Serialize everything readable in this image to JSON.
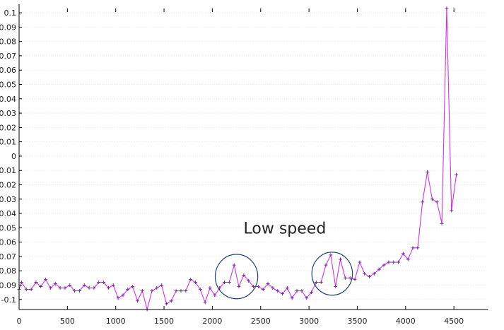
{
  "colors": {
    "series_line": "#cc33ee",
    "marker": "#7a2aa8",
    "ellipse": "#1f3f7a",
    "grid": "#dddddd",
    "axis": "#000000",
    "background": "#ffffff"
  },
  "chart_data": {
    "type": "line",
    "title": "",
    "xlabel": "",
    "ylabel": "",
    "xlim": [
      0,
      4850
    ],
    "ylim": [
      -0.107,
      0.103
    ],
    "grid": "horizontal-dotted",
    "x_ticks": [
      0,
      500,
      1000,
      1500,
      2000,
      2500,
      3000,
      3500,
      4000,
      4500
    ],
    "y_ticks": [
      0.1,
      0.09,
      0.08,
      0.07,
      0.06,
      0.05,
      0.04,
      0.03,
      0.02,
      0.01,
      0,
      -0.01,
      -0.02,
      -0.03,
      -0.04,
      -0.05,
      -0.06,
      -0.07,
      -0.08,
      -0.09,
      -0.1
    ],
    "x_tick_labels": [
      "0",
      "500",
      "1000",
      "1500",
      "2000",
      "2500",
      "3000",
      "3500",
      "4000",
      "4500"
    ],
    "y_tick_labels": [
      "0.1",
      "0.09",
      "0.08",
      "0.07",
      "0.06",
      "0.05",
      "0.04",
      "0.03",
      "0.02",
      "0.01",
      "0",
      "-0.01",
      "-0.02",
      "-0.03",
      "-0.04",
      "-0.05",
      "-0.06",
      "-0.07",
      "-0.08",
      "-0.09",
      "-0.1"
    ],
    "series": [
      {
        "marker": "+",
        "points": [
          [
            0,
            -0.093
          ],
          [
            25,
            -0.088
          ],
          [
            75,
            -0.093
          ],
          [
            125,
            -0.093
          ],
          [
            175,
            -0.088
          ],
          [
            225,
            -0.091
          ],
          [
            275,
            -0.086
          ],
          [
            325,
            -0.092
          ],
          [
            375,
            -0.089
          ],
          [
            425,
            -0.092
          ],
          [
            475,
            -0.092
          ],
          [
            525,
            -0.09
          ],
          [
            575,
            -0.094
          ],
          [
            625,
            -0.094
          ],
          [
            675,
            -0.09
          ],
          [
            725,
            -0.092
          ],
          [
            775,
            -0.092
          ],
          [
            825,
            -0.088
          ],
          [
            875,
            -0.088
          ],
          [
            925,
            -0.092
          ],
          [
            975,
            -0.09
          ],
          [
            1025,
            -0.099
          ],
          [
            1075,
            -0.097
          ],
          [
            1125,
            -0.093
          ],
          [
            1175,
            -0.091
          ],
          [
            1225,
            -0.101
          ],
          [
            1275,
            -0.094
          ],
          [
            1325,
            -0.107
          ],
          [
            1375,
            -0.094
          ],
          [
            1425,
            -0.092
          ],
          [
            1475,
            -0.09
          ],
          [
            1525,
            -0.103
          ],
          [
            1575,
            -0.101
          ],
          [
            1625,
            -0.094
          ],
          [
            1675,
            -0.094
          ],
          [
            1725,
            -0.094
          ],
          [
            1775,
            -0.086
          ],
          [
            1825,
            -0.088
          ],
          [
            1875,
            -0.093
          ],
          [
            1925,
            -0.102
          ],
          [
            1975,
            -0.092
          ],
          [
            2025,
            -0.097
          ],
          [
            2075,
            -0.092
          ],
          [
            2125,
            -0.088
          ],
          [
            2175,
            -0.088
          ],
          [
            2225,
            -0.076
          ],
          [
            2275,
            -0.091
          ],
          [
            2325,
            -0.083
          ],
          [
            2375,
            -0.087
          ],
          [
            2425,
            -0.091
          ],
          [
            2475,
            -0.091
          ],
          [
            2525,
            -0.093
          ],
          [
            2575,
            -0.089
          ],
          [
            2625,
            -0.092
          ],
          [
            2675,
            -0.094
          ],
          [
            2725,
            -0.096
          ],
          [
            2775,
            -0.092
          ],
          [
            2825,
            -0.099
          ],
          [
            2875,
            -0.094
          ],
          [
            2925,
            -0.094
          ],
          [
            2975,
            -0.099
          ],
          [
            3025,
            -0.095
          ],
          [
            3075,
            -0.088
          ],
          [
            3125,
            -0.088
          ],
          [
            3175,
            -0.076
          ],
          [
            3225,
            -0.069
          ],
          [
            3275,
            -0.091
          ],
          [
            3325,
            -0.072
          ],
          [
            3375,
            -0.085
          ],
          [
            3425,
            -0.085
          ],
          [
            3475,
            -0.086
          ],
          [
            3525,
            -0.074
          ],
          [
            3575,
            -0.082
          ],
          [
            3625,
            -0.084
          ],
          [
            3675,
            -0.082
          ],
          [
            3725,
            -0.079
          ],
          [
            3775,
            -0.076
          ],
          [
            3825,
            -0.074
          ],
          [
            3875,
            -0.074
          ],
          [
            3925,
            -0.074
          ],
          [
            3975,
            -0.068
          ],
          [
            4025,
            -0.072
          ],
          [
            4075,
            -0.064
          ],
          [
            4125,
            -0.064
          ],
          [
            4175,
            -0.032
          ],
          [
            4225,
            -0.011
          ],
          [
            4275,
            -0.03
          ],
          [
            4325,
            -0.032
          ],
          [
            4375,
            -0.047
          ],
          [
            4425,
            0.103
          ],
          [
            4475,
            -0.038
          ],
          [
            4525,
            -0.013
          ]
        ]
      }
    ],
    "annotations": [
      {
        "text": "Low speed",
        "x": 2750,
        "y": -0.054
      }
    ],
    "highlight_ellipses": [
      {
        "cx": 2250,
        "cy": -0.084,
        "rx": 220,
        "ry": 0.0155
      },
      {
        "cx": 3240,
        "cy": -0.082,
        "rx": 210,
        "ry": 0.015
      }
    ]
  }
}
